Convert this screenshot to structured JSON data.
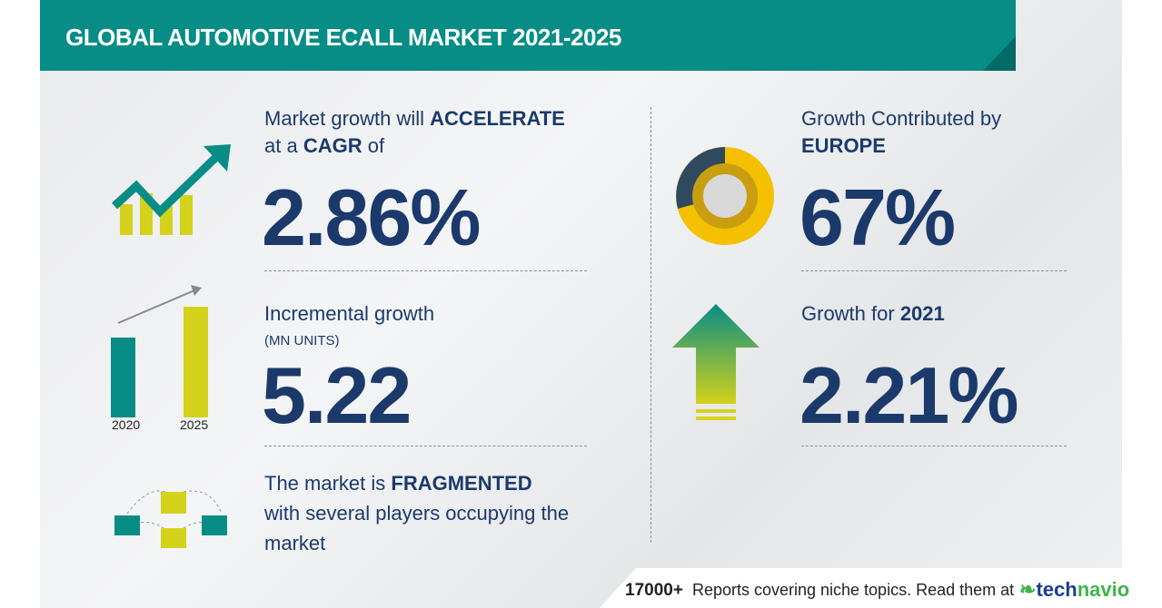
{
  "header": {
    "title": "GLOBAL AUTOMOTIVE ECALL MARKET 2021-2025"
  },
  "cagr": {
    "line1_pre": "Market growth will ",
    "line1_bold": "ACCELERATE",
    "line2_pre": "at a ",
    "line2_bold": "CAGR",
    "line2_post": " of",
    "value": "2.86%"
  },
  "incremental": {
    "label": "Incremental growth",
    "unit": "(MN UNITS)",
    "value": "5.22",
    "years": [
      "2020",
      "2025"
    ]
  },
  "market": {
    "line1_pre": "The market is ",
    "line1_bold": "FRAGMENTED",
    "line2": "with several players occupying the",
    "line3": "market"
  },
  "region": {
    "label": "Growth Contributed by",
    "region": "EUROPE",
    "value": "67%"
  },
  "yoy": {
    "label": "Growth for ",
    "year": "2021",
    "value": "2.21%"
  },
  "footer": {
    "count": "17000+",
    "text": "Reports covering niche topics. Read them at",
    "logo_tech": "tech",
    "logo_navio": "navio"
  },
  "colors": {
    "teal": "#078d86",
    "navy": "#1b3a6b",
    "yellow": "#d4d21a",
    "donut": "#f5c000",
    "logo_blue": "#1a3d8f",
    "logo_green": "#3cb64a"
  }
}
